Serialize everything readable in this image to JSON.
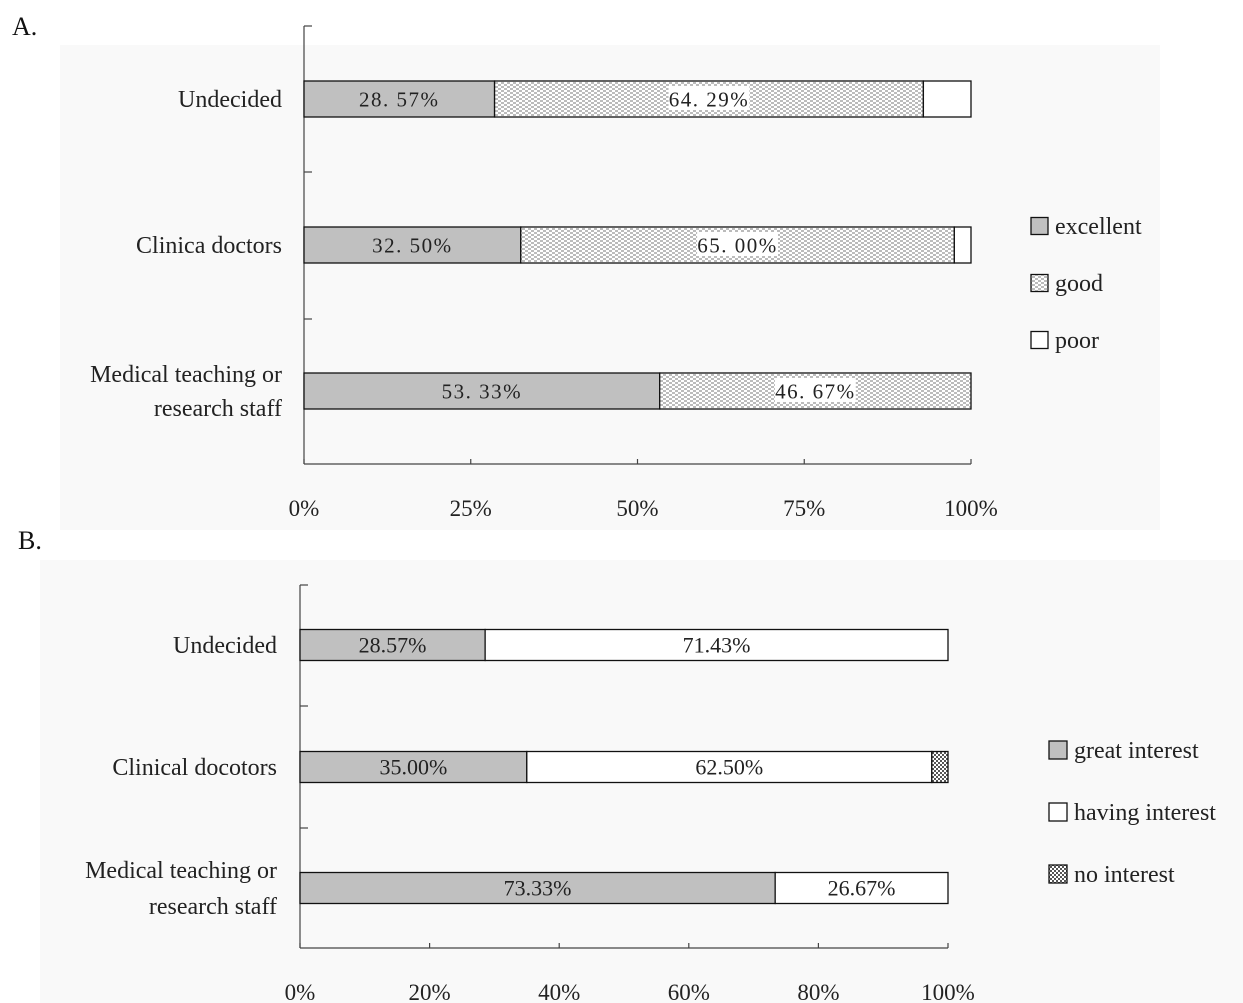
{
  "chart_data": [
    {
      "panel_label": "A.",
      "type": "bar",
      "orientation": "horizontal",
      "stacked": "percent",
      "categories": [
        "Undecided",
        "Clinica doctors",
        "Medical teaching or research staff"
      ],
      "category_lines": [
        [
          "Undecided"
        ],
        [
          "Clinica doctors"
        ],
        [
          "Medical teaching or",
          "research staff"
        ]
      ],
      "series": [
        {
          "name": "excellent",
          "values": [
            28.57,
            32.5,
            53.33
          ],
          "labels": [
            "28. 57%",
            "32. 50%",
            "53. 33%"
          ],
          "fill": "#c0c0c0"
        },
        {
          "name": "good",
          "values": [
            64.29,
            65.0,
            46.67
          ],
          "labels": [
            "64. 29%",
            "65. 00%",
            "46. 67%"
          ],
          "fill": "pattern-dots"
        },
        {
          "name": "poor",
          "values": [
            7.14,
            2.5,
            0
          ],
          "labels": [
            "",
            "",
            ""
          ],
          "fill": "#ffffff"
        }
      ],
      "xticks": [
        "0%",
        "25%",
        "50%",
        "75%",
        "100%"
      ],
      "xlim": [
        0,
        100
      ],
      "legend_position": "right",
      "background": "#f9f9f9"
    },
    {
      "panel_label": "B.",
      "type": "bar",
      "orientation": "horizontal",
      "stacked": "percent",
      "categories": [
        "Undecided",
        "Clinical docotors",
        "Medical teaching or research staff"
      ],
      "category_lines": [
        [
          "Undecided"
        ],
        [
          "Clinical docotors"
        ],
        [
          "Medical teaching or",
          "research staff"
        ]
      ],
      "series": [
        {
          "name": "great interest",
          "values": [
            28.57,
            35.0,
            73.33
          ],
          "labels": [
            "28.57%",
            "35.00%",
            "73.33%"
          ],
          "fill": "#c0c0c0"
        },
        {
          "name": "having interest",
          "values": [
            71.43,
            62.5,
            26.67
          ],
          "labels": [
            "71.43%",
            "62.50%",
            "26.67%"
          ],
          "fill": "#ffffff"
        },
        {
          "name": "no interest",
          "values": [
            0,
            2.5,
            0
          ],
          "labels": [
            "",
            "",
            ""
          ],
          "fill": "pattern-grid"
        }
      ],
      "xticks": [
        "0%",
        "20%",
        "40%",
        "60%",
        "80%",
        "100%"
      ],
      "xlim": [
        0,
        100
      ],
      "legend_position": "right",
      "background": "#f9f9f9"
    }
  ]
}
